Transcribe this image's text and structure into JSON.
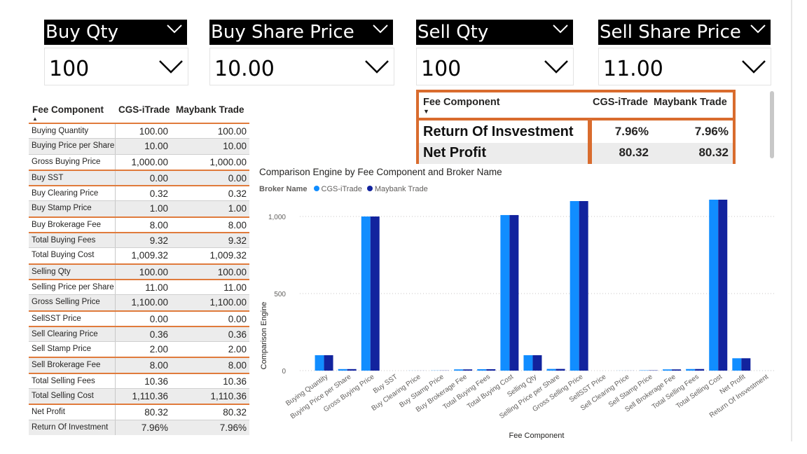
{
  "slicers": [
    {
      "title": "Buy Qty",
      "value": "100"
    },
    {
      "title": "Buy Share Price",
      "value": "10.00"
    },
    {
      "title": "Sell Qty",
      "value": "100"
    },
    {
      "title": "Sell Share Price",
      "value": "11.00"
    }
  ],
  "left_table": {
    "headers": [
      "Fee Component",
      "CGS-iTrade",
      "Maybank Trade"
    ],
    "rows": [
      {
        "label": "Buying Quantity",
        "a": "100.00",
        "b": "100.00"
      },
      {
        "label": "Buying Price per Share",
        "a": "10.00",
        "b": "10.00"
      },
      {
        "label": "Gross Buying Price",
        "a": "1,000.00",
        "b": "1,000.00"
      },
      {
        "label": "Buy SST",
        "a": "0.00",
        "b": "0.00"
      },
      {
        "label": "Buy Clearing Price",
        "a": "0.32",
        "b": "0.32"
      },
      {
        "label": "Buy Stamp Price",
        "a": "1.00",
        "b": "1.00"
      },
      {
        "label": "Buy Brokerage Fee",
        "a": "8.00",
        "b": "8.00"
      },
      {
        "label": "Total Buying Fees",
        "a": "9.32",
        "b": "9.32"
      },
      {
        "label": "Total Buying Cost",
        "a": "1,009.32",
        "b": "1,009.32"
      },
      {
        "label": "Selling Qty",
        "a": "100.00",
        "b": "100.00"
      },
      {
        "label": "Selling Price per Share",
        "a": "11.00",
        "b": "11.00"
      },
      {
        "label": "Gross Selling Price",
        "a": "1,100.00",
        "b": "1,100.00"
      },
      {
        "label": "SellSST Price",
        "a": "0.00",
        "b": "0.00"
      },
      {
        "label": "Sell Clearing Price",
        "a": "0.36",
        "b": "0.36"
      },
      {
        "label": "Sell Stamp Price",
        "a": "2.00",
        "b": "2.00"
      },
      {
        "label": "Sell Brokerage Fee",
        "a": "8.00",
        "b": "8.00"
      },
      {
        "label": "Total Selling Fees",
        "a": "10.36",
        "b": "10.36"
      },
      {
        "label": "Total Selling Cost",
        "a": "1,110.36",
        "b": "1,110.36"
      },
      {
        "label": "Net Profit",
        "a": "80.32",
        "b": "80.32"
      },
      {
        "label": "Return Of Investment",
        "a": "7.96%",
        "b": "7.96%"
      }
    ]
  },
  "right_table": {
    "headers": [
      "Fee Component",
      "CGS-iTrade",
      "Maybank Trade"
    ],
    "rows": [
      {
        "label": "Return Of Insvestment",
        "a": "7.96%",
        "b": "7.96%"
      },
      {
        "label": "Net Profit",
        "a": "80.32",
        "b": "80.32"
      }
    ]
  },
  "chart_data": {
    "type": "bar",
    "title": "Comparison Engine by Fee Component and Broker Name",
    "legend_title": "Broker Name",
    "xlabel": "Fee Component",
    "ylabel": "Comparison Engine",
    "ylim": [
      0,
      1100
    ],
    "yticks": [
      "0",
      "500",
      "1,000"
    ],
    "ytick_values": [
      0,
      500,
      1000
    ],
    "grid": true,
    "legend_position": "top-left",
    "colors": [
      "#118dff",
      "#12239e"
    ],
    "categories": [
      "Buying Quantity",
      "Buying Price per Share",
      "Gross Buying Price",
      "Buy SST",
      "Buy Clearing Price",
      "Buy Stamp Price",
      "Buy Brokerage Fee",
      "Total Buying Fees",
      "Total Buying Cost",
      "Selling Qty",
      "Selling Price per Share",
      "Gross Selling Price",
      "SellSST Price",
      "Sell Clearing Price",
      "Sell Stamp Price",
      "Sell Brokerage Fee",
      "Total Selling Fees",
      "Total Selling Cost",
      "Net Profit",
      "Return Of Insvestment"
    ],
    "series": [
      {
        "name": "CGS-iTrade",
        "values": [
          100,
          10,
          1000,
          0,
          0.32,
          1,
          8,
          9.32,
          1009.32,
          100,
          11,
          1100,
          0,
          0.36,
          2,
          8,
          10.36,
          1110.36,
          80.32,
          0.0796
        ]
      },
      {
        "name": "Maybank Trade",
        "values": [
          100,
          10,
          1000,
          0,
          0.32,
          1,
          8,
          9.32,
          1009.32,
          100,
          11,
          1100,
          0,
          0.36,
          2,
          8,
          10.36,
          1110.36,
          80.32,
          0.0796
        ]
      }
    ]
  }
}
